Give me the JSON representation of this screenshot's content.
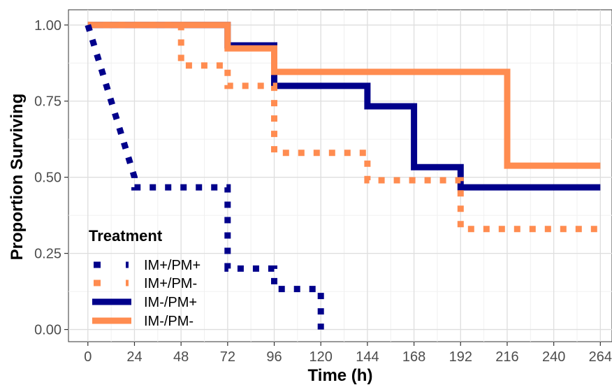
{
  "chart_data": {
    "type": "line",
    "xlabel": "Time (h)",
    "ylabel": "Proportion Surviving",
    "xlim": [
      -10,
      270
    ],
    "ylim": [
      -0.04,
      1.05
    ],
    "x_ticks": [
      0,
      24,
      48,
      72,
      96,
      120,
      144,
      168,
      192,
      216,
      240,
      264
    ],
    "x_tick_labels": [
      "0",
      "24",
      "48",
      "72",
      "96",
      "120",
      "144",
      "168",
      "192",
      "216",
      "240",
      "264"
    ],
    "y_ticks": [
      0,
      0.25,
      0.5,
      0.75,
      1.0
    ],
    "y_tick_labels": [
      "0.00",
      "0.25",
      "0.50",
      "0.75",
      "1.00"
    ],
    "grid": true,
    "legend": {
      "title": "Treatment",
      "position": "bottom-left"
    },
    "series": [
      {
        "name": "IM+/PM+",
        "color": "#00008b",
        "line_style": "dotted",
        "step_points": [
          [
            0,
            1.0
          ],
          [
            24,
            0.5
          ],
          [
            24,
            0.467
          ],
          [
            72,
            0.467
          ],
          [
            72,
            0.2
          ],
          [
            96,
            0.2
          ],
          [
            96,
            0.133
          ],
          [
            120,
            0.133
          ],
          [
            120,
            0.0
          ]
        ]
      },
      {
        "name": "IM+/PM-",
        "color": "#ff8c50",
        "line_style": "dotted",
        "step_points": [
          [
            0,
            1.0
          ],
          [
            48,
            1.0
          ],
          [
            48,
            0.867
          ],
          [
            72,
            0.867
          ],
          [
            72,
            0.8
          ],
          [
            96,
            0.8
          ],
          [
            96,
            0.58
          ],
          [
            144,
            0.58
          ],
          [
            144,
            0.49
          ],
          [
            192,
            0.49
          ],
          [
            192,
            0.33
          ],
          [
            264,
            0.33
          ]
        ]
      },
      {
        "name": "IM-/PM+",
        "color": "#00008b",
        "line_style": "solid",
        "step_points": [
          [
            0,
            1.0
          ],
          [
            72,
            1.0
          ],
          [
            72,
            0.933
          ],
          [
            96,
            0.933
          ],
          [
            96,
            0.8
          ],
          [
            144,
            0.8
          ],
          [
            144,
            0.733
          ],
          [
            168,
            0.733
          ],
          [
            168,
            0.533
          ],
          [
            192,
            0.533
          ],
          [
            192,
            0.467
          ],
          [
            264,
            0.467
          ]
        ]
      },
      {
        "name": "IM-/PM-",
        "color": "#ff8c50",
        "line_style": "solid",
        "step_points": [
          [
            0,
            1.0
          ],
          [
            72,
            1.0
          ],
          [
            72,
            0.923
          ],
          [
            96,
            0.923
          ],
          [
            96,
            0.846
          ],
          [
            216,
            0.846
          ],
          [
            216,
            0.538
          ],
          [
            264,
            0.538
          ]
        ]
      }
    ]
  }
}
